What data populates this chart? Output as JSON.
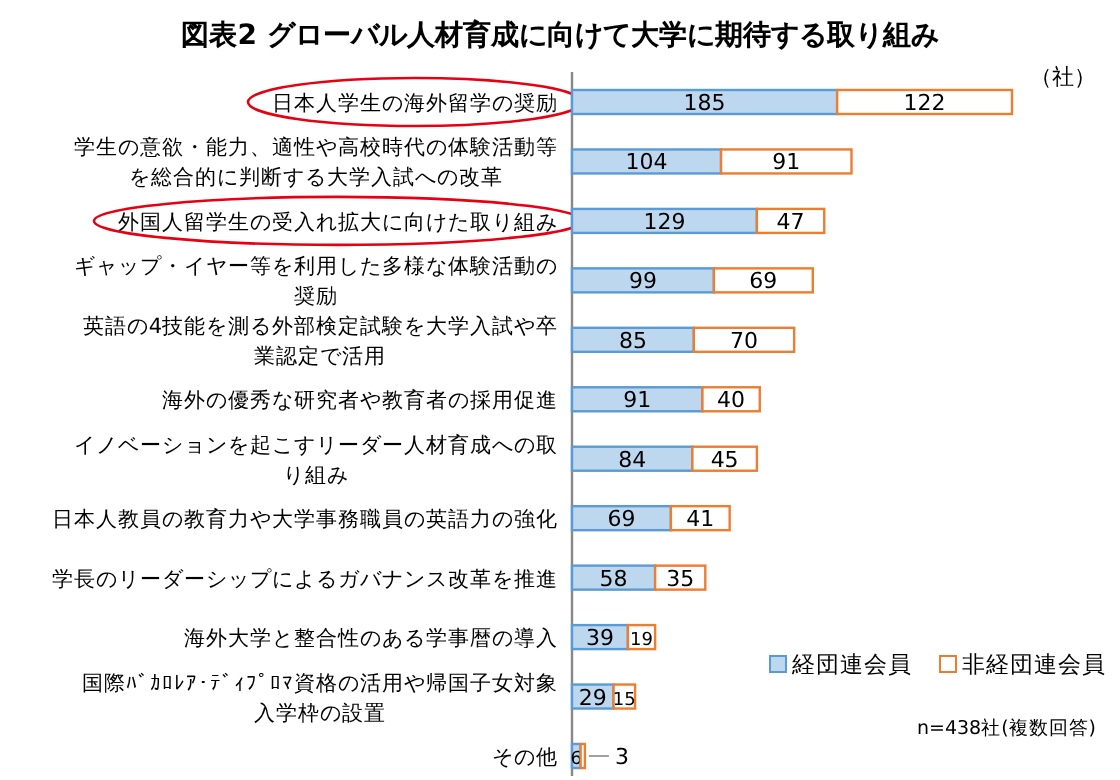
{
  "chart_data": {
    "type": "bar",
    "orientation": "horizontal",
    "stacked": true,
    "data_labels": true,
    "legend": "bottom right",
    "title": "図表2 グローバル人材育成に向けて大学に期待する取り組み",
    "categories": [
      "日本人学生の海外留学の奨励",
      "学生の意欲・能力、適性や高校時代の体験活動等を総合的に判断する大学入試への改革",
      "外国人留学生の受入れ拡大に向けた取り組み",
      "ギャップ・イヤー等を利用した多様な体験活動の奨励",
      "英語の4技能を測る外部検定試験を大学入試や卒業認定で活用",
      "海外の優秀な研究者や教育者の採用促進",
      "イノベーションを起こすリーダー人材育成への取り組み",
      "日本人教員の教育力や大学事務職員の英語力の強化",
      "学長のリーダーシップによるガバナンス改革を推進",
      "海外大学と整合性のある学事暦の導入",
      "国際ﾊﾞｶﾛﾚｱ･ﾃﾞｨﾌﾟﾛﾏ資格の活用や帰国子女対象入学枠の設置",
      "その他"
    ],
    "series": [
      {
        "name": "経団連会員",
        "color": "#5b9bd5",
        "values": [
          185,
          104,
          129,
          99,
          85,
          91,
          84,
          69,
          58,
          39,
          29,
          6
        ]
      },
      {
        "name": "非経団連会員",
        "color": "#ed7d31",
        "values": [
          122,
          91,
          47,
          69,
          70,
          40,
          45,
          41,
          35,
          19,
          15,
          3
        ]
      }
    ],
    "annotations": [
      "（社）",
      "n=438社(複数回答)"
    ]
  }
}
